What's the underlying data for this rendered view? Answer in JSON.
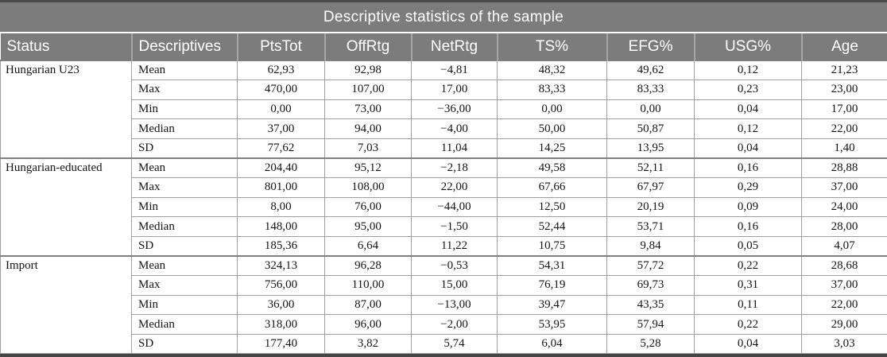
{
  "title": "Descriptive statistics of the sample",
  "colors": {
    "header_bg": "#7c7c7c",
    "header_text": "#ffffff",
    "frame_dark": "#4a4a4a",
    "grid_line": "#9f9f9f",
    "body_text": "#141414"
  },
  "table": {
    "columns": [
      "Status",
      "Descriptives",
      "PtsTot",
      "OffRtg",
      "NetRtg",
      "TS%",
      "EFG%",
      "USG%",
      "Age"
    ],
    "groups": [
      {
        "status": "Hungarian U23",
        "rows": [
          {
            "label": "Mean",
            "values": [
              "62,93",
              "92,98",
              "−4,81",
              "48,32",
              "49,62",
              "0,12",
              "21,23"
            ]
          },
          {
            "label": "Max",
            "values": [
              "470,00",
              "107,00",
              "17,00",
              "83,33",
              "83,33",
              "0,23",
              "23,00"
            ]
          },
          {
            "label": "Min",
            "values": [
              "0,00",
              "73,00",
              "−36,00",
              "0,00",
              "0,00",
              "0,04",
              "17,00"
            ]
          },
          {
            "label": "Median",
            "values": [
              "37,00",
              "94,00",
              "−4,00",
              "50,00",
              "50,87",
              "0,12",
              "22,00"
            ]
          },
          {
            "label": "SD",
            "values": [
              "77,62",
              "7,03",
              "11,04",
              "14,25",
              "13,95",
              "0,04",
              "1,40"
            ]
          }
        ]
      },
      {
        "status": "Hungarian-educated",
        "rows": [
          {
            "label": "Mean",
            "values": [
              "204,40",
              "95,12",
              "−2,18",
              "49,58",
              "52,11",
              "0,16",
              "28,88"
            ]
          },
          {
            "label": "Max",
            "values": [
              "801,00",
              "108,00",
              "22,00",
              "67,66",
              "67,97",
              "0,29",
              "37,00"
            ]
          },
          {
            "label": "Min",
            "values": [
              "8,00",
              "76,00",
              "−44,00",
              "12,50",
              "20,19",
              "0,09",
              "24,00"
            ]
          },
          {
            "label": "Median",
            "values": [
              "148,00",
              "95,00",
              "−1,50",
              "52,44",
              "53,71",
              "0,16",
              "28,00"
            ]
          },
          {
            "label": "SD",
            "values": [
              "185,36",
              "6,64",
              "11,22",
              "10,75",
              "9,84",
              "0,05",
              "4,07"
            ]
          }
        ]
      },
      {
        "status": "Import",
        "rows": [
          {
            "label": "Mean",
            "values": [
              "324,13",
              "96,28",
              "−0,53",
              "54,31",
              "57,72",
              "0,22",
              "28,68"
            ]
          },
          {
            "label": "Max",
            "values": [
              "756,00",
              "110,00",
              "15,00",
              "76,19",
              "69,73",
              "0,31",
              "37,00"
            ]
          },
          {
            "label": "Min",
            "values": [
              "36,00",
              "87,00",
              "−13,00",
              "39,47",
              "43,35",
              "0,11",
              "22,00"
            ]
          },
          {
            "label": "Median",
            "values": [
              "318,00",
              "96,00",
              "−2,00",
              "53,95",
              "57,94",
              "0,22",
              "29,00"
            ]
          },
          {
            "label": "SD",
            "values": [
              "177,40",
              "3,82",
              "5,74",
              "6,04",
              "5,28",
              "0,04",
              "3,03"
            ]
          }
        ]
      }
    ]
  }
}
